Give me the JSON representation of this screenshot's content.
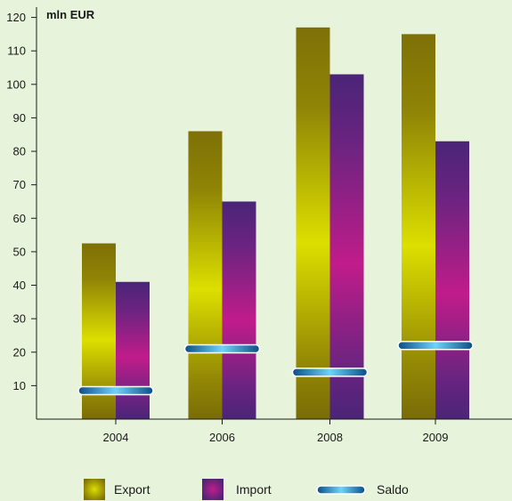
{
  "chart_data": {
    "type": "bar",
    "ylabel": "mln EUR",
    "categories": [
      "2004",
      "2006",
      "2008",
      "2009"
    ],
    "ylim": [
      0,
      125
    ],
    "yticks": [
      10,
      20,
      30,
      40,
      50,
      60,
      70,
      80,
      90,
      100,
      110,
      120
    ],
    "series": [
      {
        "name": "Export",
        "type": "bar",
        "values": [
          52.5,
          86,
          117,
          115
        ],
        "color": "#d6d400"
      },
      {
        "name": "Import",
        "type": "bar",
        "values": [
          41,
          65,
          103,
          83
        ],
        "color": "#b0218f"
      },
      {
        "name": "Saldo",
        "type": "line-marker",
        "values": [
          8.5,
          21,
          14,
          22
        ],
        "color": "#1b6fa8"
      }
    ],
    "grid": false,
    "legend": "bottom"
  },
  "colors": {
    "background": "#e7f4db",
    "export_dark": "#7e7007",
    "export_light": "#dcdf00",
    "import_dark": "#4a2577",
    "import_light": "#c01c8a",
    "saldo_dark": "#0c4d86",
    "saldo_light": "#6fd3f7"
  }
}
